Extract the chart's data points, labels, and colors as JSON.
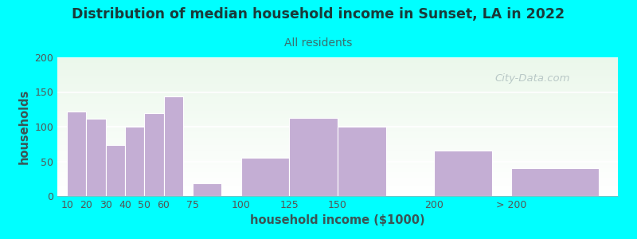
{
  "title": "Distribution of median household income in Sunset, LA in 2022",
  "subtitle": "All residents",
  "xlabel": "household income ($1000)",
  "ylabel": "households",
  "background_color": "#00FFFF",
  "bar_color": "#c4aed4",
  "bar_color_edge": "#ffffff",
  "categories": [
    "10",
    "20",
    "30",
    "40",
    "50",
    "60",
    "75",
    "100",
    "125",
    "150",
    "200",
    "> 200"
  ],
  "bar_heights": [
    122,
    112,
    73,
    100,
    120,
    144,
    18,
    55,
    113,
    100,
    65,
    40
  ],
  "bar_positions": [
    10,
    20,
    30,
    40,
    50,
    60,
    75,
    100,
    125,
    150,
    200,
    240
  ],
  "bar_widths": [
    10,
    10,
    10,
    10,
    10,
    10,
    15,
    25,
    25,
    25,
    30,
    45
  ],
  "xtick_positions": [
    10,
    20,
    30,
    40,
    50,
    60,
    75,
    100,
    125,
    150,
    200,
    240
  ],
  "xtick_labels": [
    "10",
    "20",
    "30",
    "40",
    "50",
    "60",
    "75",
    "100",
    "125",
    "150",
    "200",
    "> 200"
  ],
  "xlim": [
    5,
    295
  ],
  "ylim": [
    0,
    200
  ],
  "yticks": [
    0,
    50,
    100,
    150,
    200
  ],
  "title_fontsize": 12.5,
  "subtitle_fontsize": 10,
  "axis_label_fontsize": 10.5,
  "tick_fontsize": 9,
  "title_color": "#1a3a3a",
  "subtitle_color": "#3a7070",
  "axis_label_color": "#3a5555",
  "tick_color": "#555555",
  "watermark_text": "City-Data.com",
  "watermark_color": "#b0c0c0",
  "plot_bg_green": [
    0.92,
    0.97,
    0.92
  ],
  "plot_bg_white": [
    1.0,
    1.0,
    1.0
  ]
}
